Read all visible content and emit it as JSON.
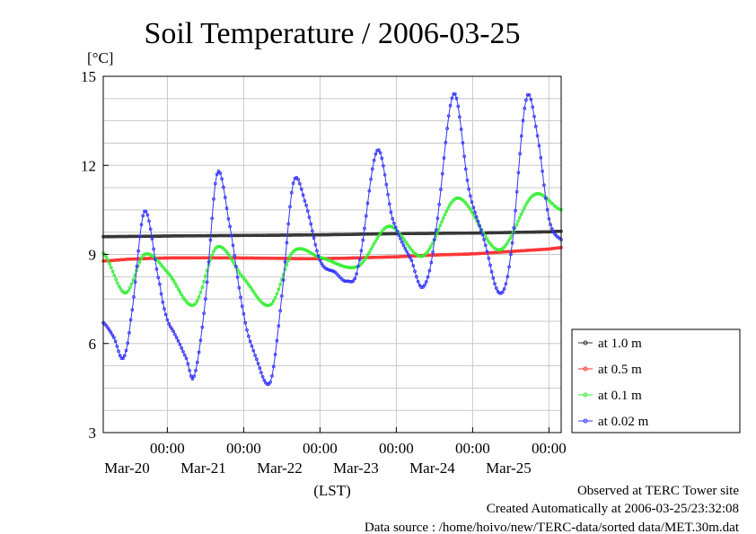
{
  "chart_data": {
    "type": "line",
    "title": "Soil Temperature / 2006-03-25",
    "ylabel": "[°C]",
    "xlabel": "(LST)",
    "ylim": [
      3,
      15
    ],
    "xlim": [
      -0.84,
      5.16
    ],
    "y_ticks": [
      3,
      6,
      9,
      12,
      15
    ],
    "x_ticks": [
      {
        "x": 0,
        "time": "00:00",
        "date": "Mar-20"
      },
      {
        "x": 1,
        "time": "00:00",
        "date": "Mar-21"
      },
      {
        "x": 2,
        "time": "00:00",
        "date": "Mar-22"
      },
      {
        "x": 3,
        "time": "00:00",
        "date": "Mar-23"
      },
      {
        "x": 4,
        "time": "00:00",
        "date": "Mar-24"
      },
      {
        "x": 5,
        "time": "00:00",
        "date": "Mar-25"
      }
    ],
    "grid": true,
    "legend_position": "right",
    "series": [
      {
        "name": "at 1.0 m",
        "color": "#333333",
        "points": [
          [
            -0.84,
            9.6
          ],
          [
            0,
            9.62
          ],
          [
            1,
            9.64
          ],
          [
            2,
            9.66
          ],
          [
            3,
            9.7
          ],
          [
            4,
            9.72
          ],
          [
            5,
            9.76
          ],
          [
            5.16,
            9.78
          ]
        ]
      },
      {
        "name": "at 0.5 m",
        "color": "#ff3333",
        "points": [
          [
            -0.84,
            8.78
          ],
          [
            -0.5,
            8.84
          ],
          [
            0,
            8.88
          ],
          [
            1,
            8.88
          ],
          [
            2,
            8.86
          ],
          [
            3,
            8.92
          ],
          [
            3.5,
            8.98
          ],
          [
            4,
            9.02
          ],
          [
            4.5,
            9.1
          ],
          [
            5,
            9.18
          ],
          [
            5.16,
            9.23
          ]
        ]
      },
      {
        "name": "at 0.1 m",
        "color": "#33ee33",
        "points": [
          [
            -0.84,
            9.05
          ],
          [
            -0.55,
            7.7
          ],
          [
            -0.3,
            9.0
          ],
          [
            0,
            8.4
          ],
          [
            0.35,
            7.3
          ],
          [
            0.65,
            9.25
          ],
          [
            1,
            8.2
          ],
          [
            1.35,
            7.3
          ],
          [
            1.65,
            9.1
          ],
          [
            2,
            8.9
          ],
          [
            2.5,
            8.6
          ],
          [
            2.9,
            9.95
          ],
          [
            3.35,
            8.95
          ],
          [
            3.8,
            10.9
          ],
          [
            4.35,
            9.15
          ],
          [
            4.8,
            11.0
          ],
          [
            5.16,
            10.5
          ]
        ]
      },
      {
        "name": "at 0.02 m",
        "color": "#3333ff",
        "points": [
          [
            -0.84,
            6.7
          ],
          [
            -0.7,
            6.2
          ],
          [
            -0.58,
            5.5
          ],
          [
            -0.48,
            6.8
          ],
          [
            -0.3,
            10.45
          ],
          [
            -0.1,
            8.0
          ],
          [
            0,
            6.8
          ],
          [
            0.1,
            6.3
          ],
          [
            0.25,
            5.5
          ],
          [
            0.35,
            4.9
          ],
          [
            0.5,
            7.5
          ],
          [
            0.65,
            11.7
          ],
          [
            0.8,
            10.2
          ],
          [
            1,
            7.0
          ],
          [
            1.15,
            5.6
          ],
          [
            1.35,
            4.7
          ],
          [
            1.5,
            7.6
          ],
          [
            1.65,
            11.4
          ],
          [
            1.8,
            10.8
          ],
          [
            2,
            8.8
          ],
          [
            2.2,
            8.4
          ],
          [
            2.35,
            8.1
          ],
          [
            2.5,
            8.6
          ],
          [
            2.75,
            12.5
          ],
          [
            2.95,
            10.2
          ],
          [
            3.2,
            8.8
          ],
          [
            3.35,
            7.9
          ],
          [
            3.5,
            9.5
          ],
          [
            3.75,
            14.4
          ],
          [
            3.95,
            11.2
          ],
          [
            4.15,
            9.5
          ],
          [
            4.35,
            7.7
          ],
          [
            4.5,
            9.0
          ],
          [
            4.7,
            14.2
          ],
          [
            4.85,
            13.0
          ],
          [
            5.0,
            10.2
          ],
          [
            5.16,
            9.5
          ]
        ]
      }
    ]
  },
  "footer": {
    "line1": "Observed at TERC Tower site",
    "line2": "Created Automatically at 2006-03-25/23:32:08",
    "line3": "Data source : /home/hoivo/new/TERC-data/sorted  data/MET.30m.dat"
  }
}
